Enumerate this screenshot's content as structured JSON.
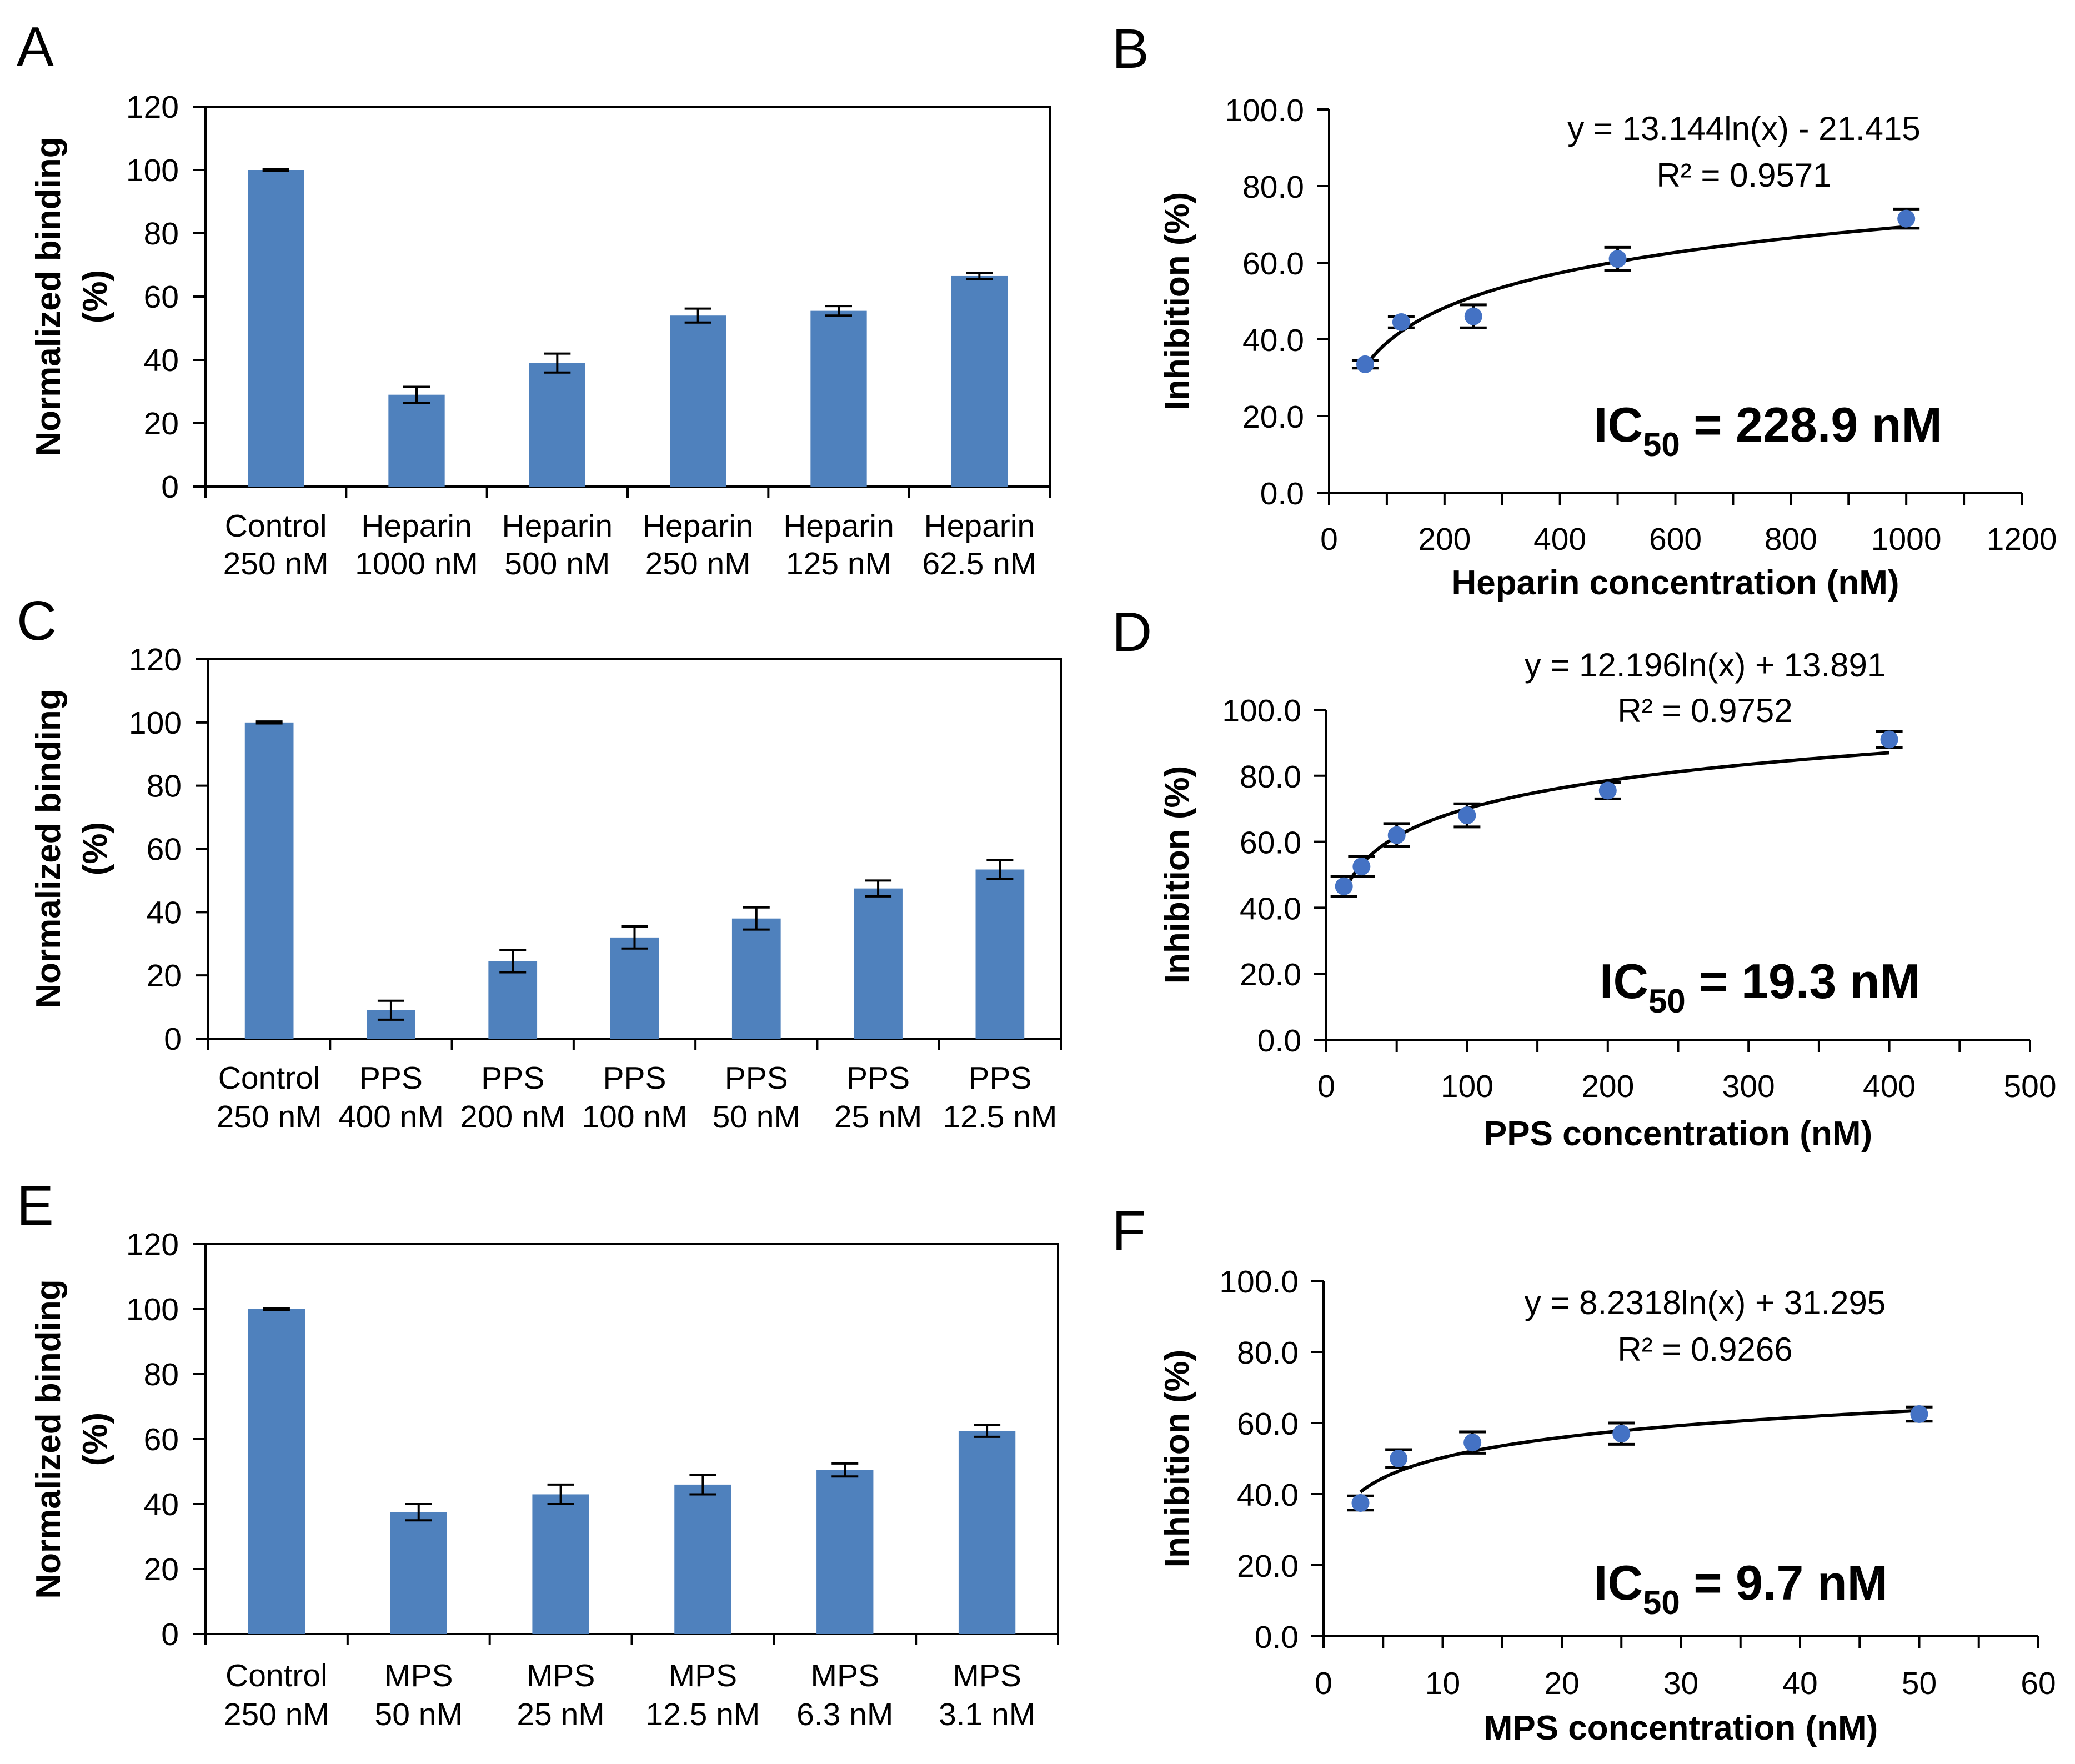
{
  "colors": {
    "bar": "#4f81bd",
    "point": "#4472c4",
    "axis": "#000000",
    "fit": "#000000"
  },
  "chart_data": [
    {
      "id": "A",
      "panel_label": "A",
      "type": "bar",
      "title": "",
      "ylabel_line1": "Normalized binding",
      "ylabel_line2": "(%)",
      "ylim": [
        0,
        120
      ],
      "yticks": [
        "0",
        "20",
        "40",
        "60",
        "80",
        "100",
        "120"
      ],
      "categories": [
        [
          "Control",
          "250 nM"
        ],
        [
          "Heparin",
          "1000 nM"
        ],
        [
          "Heparin",
          "500 nM"
        ],
        [
          "Heparin",
          "250 nM"
        ],
        [
          "Heparin",
          "125 nM"
        ],
        [
          "Heparin",
          "62.5 nM"
        ]
      ],
      "values": [
        100,
        29,
        39,
        54,
        55.5,
        66.5
      ],
      "errors": [
        0.3,
        2.5,
        3.0,
        2.2,
        1.5,
        1.0
      ]
    },
    {
      "id": "B",
      "panel_label": "B",
      "type": "scatter",
      "xlabel": "Heparin concentration (nM)",
      "ylabel": "Inhibition (%)",
      "xlim": [
        0,
        1200
      ],
      "ylim": [
        0,
        100
      ],
      "xticks": [
        "0",
        "200",
        "400",
        "600",
        "800",
        "1000",
        "1200"
      ],
      "yticks": [
        "0.0",
        "20.0",
        "40.0",
        "60.0",
        "80.0",
        "100.0"
      ],
      "x": [
        62.5,
        125,
        250,
        500,
        1000
      ],
      "y": [
        33.5,
        44.5,
        46,
        61,
        71.5
      ],
      "errors": [
        1.0,
        1.5,
        3.0,
        3.0,
        2.5
      ],
      "fit": {
        "a": 13.144,
        "b": -21.415,
        "x_start": 62.5,
        "x_end": 1000
      },
      "equation": "y = 13.144ln(x) - 21.415",
      "r2": "R² = 0.9571",
      "ic50_main": "IC",
      "ic50_sub": "50",
      "ic50_value": " = 228.9 nM"
    },
    {
      "id": "C",
      "panel_label": "C",
      "type": "bar",
      "title": "",
      "ylabel_line1": "Normalized binding",
      "ylabel_line2": "(%)",
      "ylim": [
        0,
        120
      ],
      "yticks": [
        "0",
        "20",
        "40",
        "60",
        "80",
        "100",
        "120"
      ],
      "categories": [
        [
          "Control",
          "250 nM"
        ],
        [
          "PPS",
          "400 nM"
        ],
        [
          "PPS",
          "200 nM"
        ],
        [
          "PPS",
          "100 nM"
        ],
        [
          "PPS",
          "50 nM"
        ],
        [
          "PPS",
          "25 nM"
        ],
        [
          "PPS",
          "12.5 nM"
        ]
      ],
      "values": [
        100,
        9,
        24.5,
        32,
        38,
        47.5,
        53.5
      ],
      "errors": [
        0.3,
        3.0,
        3.5,
        3.5,
        3.5,
        2.5,
        3.0
      ]
    },
    {
      "id": "D",
      "panel_label": "D",
      "type": "scatter",
      "xlabel": "PPS concentration (nM)",
      "ylabel": "Inhibition (%)",
      "xlim": [
        0,
        500
      ],
      "ylim": [
        0,
        100
      ],
      "xticks": [
        "0",
        "100",
        "200",
        "300",
        "400",
        "500"
      ],
      "yticks": [
        "0.0",
        "20.0",
        "40.0",
        "60.0",
        "80.0",
        "100.0"
      ],
      "x": [
        12.5,
        25,
        50,
        100,
        200,
        400
      ],
      "y": [
        46.5,
        52.5,
        62,
        68,
        75.5,
        91
      ],
      "errors": [
        3.0,
        3.0,
        3.5,
        3.5,
        2.5,
        2.5
      ],
      "fit": {
        "a": 12.196,
        "b": 13.891,
        "x_start": 12.5,
        "x_end": 400
      },
      "equation": "y = 12.196ln(x) + 13.891",
      "r2": "R² = 0.9752",
      "ic50_main": "IC",
      "ic50_sub": "50",
      "ic50_value": " = 19.3 nM"
    },
    {
      "id": "E",
      "panel_label": "E",
      "type": "bar",
      "title": "",
      "ylabel_line1": "Normalized binding",
      "ylabel_line2": "(%)",
      "ylim": [
        0,
        120
      ],
      "yticks": [
        "0",
        "20",
        "40",
        "60",
        "80",
        "100",
        "120"
      ],
      "categories": [
        [
          "Control",
          "250 nM"
        ],
        [
          "MPS",
          "50 nM"
        ],
        [
          "MPS",
          "25 nM"
        ],
        [
          "MPS",
          "12.5 nM"
        ],
        [
          "MPS",
          "6.3 nM"
        ],
        [
          "MPS",
          "3.1 nM"
        ]
      ],
      "values": [
        100,
        37.5,
        43,
        46,
        50.5,
        62.5
      ],
      "errors": [
        0.3,
        2.5,
        3.0,
        3.0,
        2.0,
        1.8
      ]
    },
    {
      "id": "F",
      "panel_label": "F",
      "type": "scatter",
      "xlabel": "MPS concentration (nM)",
      "ylabel": "Inhibition (%)",
      "xlim": [
        0,
        60
      ],
      "ylim": [
        0,
        100
      ],
      "xticks": [
        "0",
        "10",
        "20",
        "30",
        "40",
        "50",
        "60"
      ],
      "yticks": [
        "0.0",
        "20.0",
        "40.0",
        "60.0",
        "80.0",
        "100.0"
      ],
      "x": [
        3.1,
        6.3,
        12.5,
        25,
        50
      ],
      "y": [
        37.5,
        50,
        54.5,
        57,
        62.5
      ],
      "errors": [
        2.0,
        2.5,
        3.0,
        3.0,
        2.0
      ],
      "fit": {
        "a": 8.2318,
        "b": 31.295,
        "x_start": 3.1,
        "x_end": 50
      },
      "equation": "y = 8.2318ln(x) + 31.295",
      "r2": "R² = 0.9266",
      "ic50_main": "IC",
      "ic50_sub": "50",
      "ic50_value": " = 9.7 nM"
    }
  ]
}
